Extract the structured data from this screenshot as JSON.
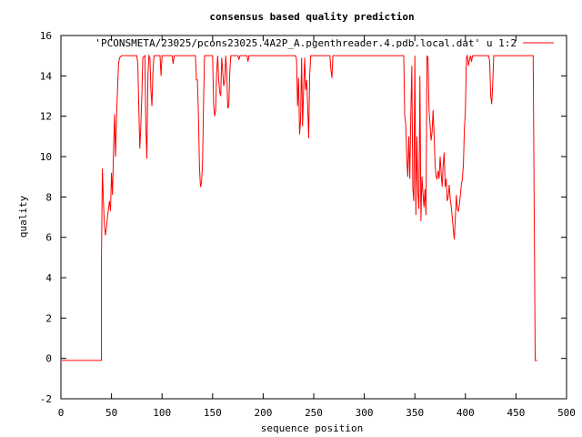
{
  "chart_data": {
    "type": "line",
    "title": "consensus based quality prediction",
    "xlabel": "sequence position",
    "ylabel": "quality",
    "xlim": [
      0,
      500
    ],
    "ylim": [
      -2,
      16
    ],
    "xticks": [
      0,
      50,
      100,
      150,
      200,
      250,
      300,
      350,
      400,
      450,
      500
    ],
    "yticks": [
      -2,
      0,
      2,
      4,
      6,
      8,
      10,
      12,
      14,
      16
    ],
    "grid": false,
    "legend_position": "top-right",
    "series": [
      {
        "name": "'PCONSMETA/23025/pcons23025.4A2P_A.pgenthreader.4.pdb.local.dat' u 1:2",
        "color": "#ff0000",
        "points": [
          [
            1,
            -0.1
          ],
          [
            40,
            -0.1
          ],
          [
            40,
            4.6
          ],
          [
            41,
            9.4
          ],
          [
            42,
            7.8
          ],
          [
            43,
            6.6
          ],
          [
            44,
            6.1
          ],
          [
            45,
            6.5
          ],
          [
            46,
            7.0
          ],
          [
            47,
            7.4
          ],
          [
            48,
            7.8
          ],
          [
            49,
            7.3
          ],
          [
            50,
            9.2
          ],
          [
            51,
            8.1
          ],
          [
            52,
            10.2
          ],
          [
            53,
            12.1
          ],
          [
            54,
            10.0
          ],
          [
            55,
            11.9
          ],
          [
            56,
            13.4
          ],
          [
            57,
            14.6
          ],
          [
            58,
            14.9
          ],
          [
            60,
            15.0
          ],
          [
            75,
            15.0
          ],
          [
            76,
            14.6
          ],
          [
            78,
            10.4
          ],
          [
            79,
            11.5
          ],
          [
            80,
            13.0
          ],
          [
            81,
            14.9
          ],
          [
            83,
            15.0
          ],
          [
            84,
            11.4
          ],
          [
            85,
            9.9
          ],
          [
            86,
            14.0
          ],
          [
            87,
            15.0
          ],
          [
            88,
            14.9
          ],
          [
            89,
            13.3
          ],
          [
            90,
            12.5
          ],
          [
            91,
            14.2
          ],
          [
            92,
            15.0
          ],
          [
            98,
            15.0
          ],
          [
            99,
            14.0
          ],
          [
            100,
            15.0
          ],
          [
            110,
            15.0
          ],
          [
            111,
            14.6
          ],
          [
            112,
            15.0
          ],
          [
            133,
            15.0
          ],
          [
            134,
            13.8
          ],
          [
            135,
            13.8
          ],
          [
            136,
            12.0
          ],
          [
            137,
            9.5
          ],
          [
            138,
            8.5
          ],
          [
            139,
            8.7
          ],
          [
            140,
            9.6
          ],
          [
            141,
            12.5
          ],
          [
            142,
            15.0
          ],
          [
            150,
            15.0
          ],
          [
            151,
            12.6
          ],
          [
            152,
            12.0
          ],
          [
            153,
            12.3
          ],
          [
            154,
            14.2
          ],
          [
            155,
            15.0
          ],
          [
            156,
            13.8
          ],
          [
            157,
            13.2
          ],
          [
            158,
            13.0
          ],
          [
            159,
            14.9
          ],
          [
            160,
            14.2
          ],
          [
            161,
            13.5
          ],
          [
            162,
            13.8
          ],
          [
            163,
            15.0
          ],
          [
            164,
            14.1
          ],
          [
            165,
            12.4
          ],
          [
            166,
            12.5
          ],
          [
            167,
            14.2
          ],
          [
            168,
            15.0
          ],
          [
            175,
            15.0
          ],
          [
            176,
            14.8
          ],
          [
            177,
            15.0
          ],
          [
            184,
            15.0
          ],
          [
            185,
            14.7
          ],
          [
            186,
            15.0
          ],
          [
            232,
            15.0
          ],
          [
            233,
            14.8
          ],
          [
            234,
            12.5
          ],
          [
            235,
            13.9
          ],
          [
            236,
            11.1
          ],
          [
            237,
            11.8
          ],
          [
            238,
            14.9
          ],
          [
            239,
            11.5
          ],
          [
            240,
            13.3
          ],
          [
            241,
            14.9
          ],
          [
            242,
            13.3
          ],
          [
            243,
            13.8
          ],
          [
            244,
            12.5
          ],
          [
            245,
            10.9
          ],
          [
            246,
            14.0
          ],
          [
            247,
            15.0
          ],
          [
            266,
            15.0
          ],
          [
            267,
            14.3
          ],
          [
            268,
            13.9
          ],
          [
            269,
            15.0
          ],
          [
            339,
            15.0
          ],
          [
            340,
            12.0
          ],
          [
            341,
            11.6
          ],
          [
            342,
            9.9
          ],
          [
            343,
            9.0
          ],
          [
            344,
            11.0
          ],
          [
            345,
            8.9
          ],
          [
            346,
            12.1
          ],
          [
            347,
            14.5
          ],
          [
            348,
            8.4
          ],
          [
            349,
            7.8
          ],
          [
            350,
            15.0
          ],
          [
            351,
            7.1
          ],
          [
            352,
            11.0
          ],
          [
            353,
            8.2
          ],
          [
            354,
            7.4
          ],
          [
            355,
            14.0
          ],
          [
            356,
            6.8
          ],
          [
            357,
            9.0
          ],
          [
            358,
            8.2
          ],
          [
            359,
            7.5
          ],
          [
            360,
            8.4
          ],
          [
            361,
            7.1
          ],
          [
            362,
            15.0
          ],
          [
            363,
            14.9
          ],
          [
            364,
            12.3
          ],
          [
            365,
            11.6
          ],
          [
            366,
            10.8
          ],
          [
            367,
            11.2
          ],
          [
            368,
            12.3
          ],
          [
            369,
            11.1
          ],
          [
            370,
            9.6
          ],
          [
            371,
            9.0
          ],
          [
            372,
            8.9
          ],
          [
            373,
            9.3
          ],
          [
            374,
            8.9
          ],
          [
            375,
            10.0
          ],
          [
            376,
            9.2
          ],
          [
            377,
            8.5
          ],
          [
            378,
            9.6
          ],
          [
            379,
            10.2
          ],
          [
            380,
            8.5
          ],
          [
            381,
            8.9
          ],
          [
            382,
            7.8
          ],
          [
            383,
            8.0
          ],
          [
            384,
            8.6
          ],
          [
            385,
            7.9
          ],
          [
            386,
            7.5
          ],
          [
            387,
            7.0
          ],
          [
            388,
            6.4
          ],
          [
            389,
            5.9
          ],
          [
            390,
            6.9
          ],
          [
            391,
            8.1
          ],
          [
            392,
            7.4
          ],
          [
            393,
            7.3
          ],
          [
            394,
            7.6
          ],
          [
            395,
            8.1
          ],
          [
            396,
            8.6
          ],
          [
            397,
            8.9
          ],
          [
            398,
            9.6
          ],
          [
            399,
            11.4
          ],
          [
            400,
            12.3
          ],
          [
            401,
            14.9
          ],
          [
            402,
            15.0
          ],
          [
            403,
            14.5
          ],
          [
            404,
            14.8
          ],
          [
            405,
            15.0
          ],
          [
            406,
            14.7
          ],
          [
            407,
            15.0
          ],
          [
            423,
            15.0
          ],
          [
            424,
            14.7
          ],
          [
            425,
            13.0
          ],
          [
            426,
            12.6
          ],
          [
            427,
            13.6
          ],
          [
            428,
            15.0
          ],
          [
            467,
            15.0
          ],
          [
            468,
            7.5
          ],
          [
            469,
            -0.1
          ],
          [
            471,
            -0.1
          ]
        ]
      }
    ]
  }
}
